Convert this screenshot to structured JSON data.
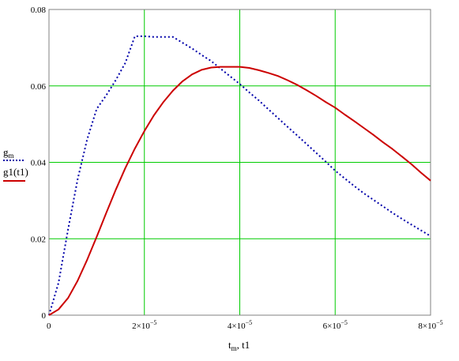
{
  "chart_data": {
    "type": "line",
    "xlabel": "t",
    "xlabel_sub": "m",
    "xlabel_rest": ", t1",
    "xlim": [
      0,
      8e-05
    ],
    "ylim": [
      0,
      0.08
    ],
    "grid": true,
    "x_ticks": [
      {
        "value": 0,
        "mantissa": "0",
        "exp": ""
      },
      {
        "value": 2e-05,
        "mantissa": "2×10",
        "exp": "−5"
      },
      {
        "value": 4e-05,
        "mantissa": "4×10",
        "exp": "−5"
      },
      {
        "value": 6e-05,
        "mantissa": "6×10",
        "exp": "−5"
      },
      {
        "value": 8e-05,
        "mantissa": "8×10",
        "exp": "−5"
      }
    ],
    "y_ticks": [
      {
        "value": 0,
        "label": "0"
      },
      {
        "value": 0.02,
        "label": "0.02"
      },
      {
        "value": 0.04,
        "label": "0.04"
      },
      {
        "value": 0.06,
        "label": "0.06"
      },
      {
        "value": 0.08,
        "label": "0.08"
      }
    ],
    "series": [
      {
        "label": "g",
        "label_sub": "m",
        "color": "#0000aa",
        "style": "dotted",
        "x": [
          0,
          2e-06,
          4e-06,
          6e-06,
          8e-06,
          1e-05,
          1.2e-05,
          1.4e-05,
          1.6e-05,
          1.8e-05,
          2e-05,
          2.2e-05,
          2.4e-05,
          2.6e-05,
          2.8e-05,
          3e-05,
          3.2e-05,
          3.4e-05,
          3.6e-05,
          3.8e-05,
          4e-05,
          4.2e-05,
          4.4e-05,
          4.6e-05,
          4.8e-05,
          5e-05,
          5.2e-05,
          5.4e-05,
          5.6e-05,
          5.8e-05,
          6e-05,
          6.2e-05,
          6.4e-05,
          6.6e-05,
          6.8e-05,
          7e-05,
          7.2e-05,
          7.4e-05,
          7.6e-05,
          7.8e-05,
          8e-05
        ],
        "y": [
          0,
          0.0085,
          0.0225,
          0.0355,
          0.046,
          0.054,
          0.0575,
          0.0615,
          0.066,
          0.073,
          0.073,
          0.0728,
          0.0728,
          0.0728,
          0.0713,
          0.0698,
          0.0681,
          0.0665,
          0.0645,
          0.0625,
          0.0605,
          0.0583,
          0.0562,
          0.0539,
          0.0516,
          0.0493,
          0.0471,
          0.0448,
          0.0425,
          0.0402,
          0.0378,
          0.0358,
          0.0338,
          0.0319,
          0.0302,
          0.0285,
          0.0268,
          0.0252,
          0.0237,
          0.0222,
          0.0207
        ]
      },
      {
        "label": "g1(t1)",
        "color": "#cc0000",
        "style": "solid",
        "x": [
          0,
          2e-06,
          4e-06,
          6e-06,
          8e-06,
          1e-05,
          1.2e-05,
          1.4e-05,
          1.6e-05,
          1.8e-05,
          2e-05,
          2.2e-05,
          2.4e-05,
          2.6e-05,
          2.8e-05,
          3e-05,
          3.2e-05,
          3.4e-05,
          3.6e-05,
          3.8e-05,
          4e-05,
          4.2e-05,
          4.4e-05,
          4.6e-05,
          4.8e-05,
          5e-05,
          5.2e-05,
          5.4e-05,
          5.6e-05,
          5.8e-05,
          6e-05,
          6.2e-05,
          6.4e-05,
          6.6e-05,
          6.8e-05,
          7e-05,
          7.2e-05,
          7.4e-05,
          7.6e-05,
          7.8e-05,
          8e-05
        ],
        "y": [
          0,
          0.0015,
          0.0045,
          0.009,
          0.0145,
          0.0205,
          0.0267,
          0.0328,
          0.0385,
          0.0436,
          0.0482,
          0.0523,
          0.0558,
          0.0588,
          0.0612,
          0.063,
          0.0642,
          0.0648,
          0.065,
          0.065,
          0.065,
          0.0647,
          0.0641,
          0.0634,
          0.0626,
          0.0615,
          0.0603,
          0.0589,
          0.0574,
          0.0558,
          0.0543,
          0.0525,
          0.0508,
          0.049,
          0.0472,
          0.0453,
          0.0435,
          0.0415,
          0.0395,
          0.0373,
          0.0352
        ]
      }
    ]
  }
}
